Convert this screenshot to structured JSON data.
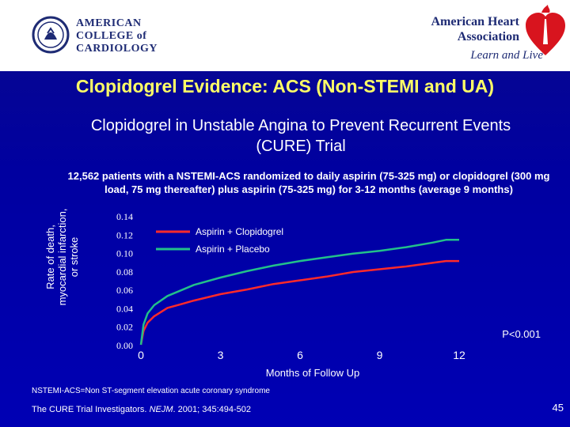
{
  "header": {
    "acc_lines": [
      "AMERICAN",
      "COLLEGE of",
      "CARDIOLOGY"
    ],
    "aha_name_lines": [
      "American Heart",
      "Association"
    ],
    "aha_tagline": "Learn and Live"
  },
  "slide": {
    "title": "Clopidogrel Evidence: ACS (Non-STEMI and UA)",
    "subtitle_line1": "Clopidogrel in Unstable Angina to Prevent Recurrent Events",
    "subtitle_line2": "(CURE) Trial",
    "description": "12,562 patients with a NSTEMI-ACS randomized to daily aspirin (75-325 mg) or clopidogrel (300 mg load, 75 mg thereafter) plus aspirin (75-325 mg) for 3-12 months (average 9 months)",
    "footnote": "NSTEMI-ACS=Non ST-segment elevation acute coronary syndrome",
    "reference_authors": "The CURE Trial Investigators. ",
    "reference_journal": "NEJM",
    "reference_rest": ". 2001; 345:494-502",
    "page_number": "45"
  },
  "chart_data": {
    "type": "line",
    "ylabel_lines": [
      "Rate of death,",
      "myocardial infarction,",
      "or stroke"
    ],
    "xlabel": "Months of Follow Up",
    "xlim": [
      0,
      12
    ],
    "ylim": [
      0,
      0.14
    ],
    "x_ticks": [
      0,
      3,
      6,
      9,
      12
    ],
    "y_ticks": [
      "0.00",
      "0.02",
      "0.04",
      "0.06",
      "0.08",
      "0.10",
      "0.12",
      "0.14"
    ],
    "annotation": "P<0.001",
    "legend_position": "top-left",
    "series": [
      {
        "name": "Aspirin + Clopidogrel",
        "color": "#ff2a2a",
        "x": [
          0,
          0.1,
          0.25,
          0.5,
          1,
          1.5,
          2,
          3,
          4,
          5,
          6,
          7,
          8,
          9,
          10,
          11,
          11.5,
          12
        ],
        "y": [
          0,
          0.015,
          0.024,
          0.031,
          0.04,
          0.044,
          0.048,
          0.055,
          0.06,
          0.066,
          0.07,
          0.074,
          0.079,
          0.082,
          0.085,
          0.089,
          0.091,
          0.091
        ]
      },
      {
        "name": "Aspirin + Placebo",
        "color": "#22c08a",
        "x": [
          0,
          0.1,
          0.25,
          0.5,
          1,
          1.5,
          2,
          3,
          4,
          5,
          6,
          7,
          8,
          9,
          10,
          11,
          11.5,
          12
        ],
        "y": [
          0,
          0.022,
          0.034,
          0.043,
          0.053,
          0.059,
          0.065,
          0.073,
          0.08,
          0.086,
          0.091,
          0.095,
          0.099,
          0.102,
          0.106,
          0.111,
          0.114,
          0.114
        ]
      }
    ]
  }
}
